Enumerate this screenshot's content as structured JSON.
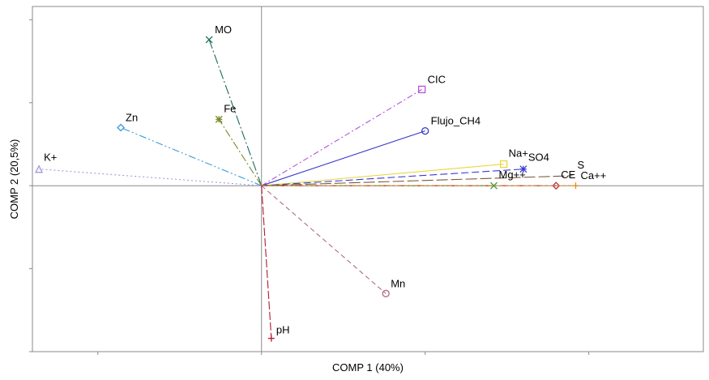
{
  "chart_data": {
    "type": "scatter",
    "subtype": "biplot-vectors",
    "title": "",
    "xlabel": "COMP 1 (40%)",
    "ylabel": "COMP 2 (20,5%)",
    "xlim": [
      -0.7,
      1.35
    ],
    "ylim": [
      -1.0,
      1.08
    ],
    "tick_labels_shown": false,
    "grid": false,
    "reference_lines": {
      "x": 0,
      "y": 0
    },
    "series": [
      {
        "name": "MO",
        "x": -0.16,
        "y": 0.88,
        "color": "#1a6b5a",
        "marker": "x",
        "dash": "12 3 2 3"
      },
      {
        "name": "CIC",
        "x": 0.49,
        "y": 0.58,
        "color": "#b455d8",
        "marker": "square",
        "dash": "7 3 2 3"
      },
      {
        "name": "Zn",
        "x": -0.43,
        "y": 0.35,
        "color": "#3a9ad9",
        "marker": "diamond",
        "dash": "9 3 2 3 2 3"
      },
      {
        "name": "Fe",
        "x": -0.13,
        "y": 0.4,
        "color": "#7a8a2a",
        "marker": "asterisk",
        "dash": "10 3 2 3"
      },
      {
        "name": "Flujo_CH4",
        "x": 0.5,
        "y": 0.33,
        "color": "#3535c8",
        "marker": "circle",
        "dash": ""
      },
      {
        "name": "K+",
        "x": -0.68,
        "y": 0.1,
        "color": "#a898d8",
        "marker": "triangle",
        "dash": "2 3"
      },
      {
        "name": "Na+",
        "x": 0.74,
        "y": 0.13,
        "color": "#e8d840",
        "marker": "square",
        "dash": ""
      },
      {
        "name": "SO4",
        "x": 0.8,
        "y": 0.1,
        "color": "#3a3ad8",
        "marker": "asterisk",
        "dash": "9 4"
      },
      {
        "name": "S",
        "x": 0.95,
        "y": 0.06,
        "color": "#7a5a3a",
        "marker": "none",
        "dash": "14 4"
      },
      {
        "name": "Mg++",
        "x": 0.71,
        "y": 0.0,
        "color": "#3a9a3a",
        "marker": "x",
        "dash": "3 3"
      },
      {
        "name": "CE",
        "x": 0.9,
        "y": 0.0,
        "color": "#b43040",
        "marker": "diamond",
        "dash": "10 4 3 4"
      },
      {
        "name": "Ca++",
        "x": 0.96,
        "y": 0.0,
        "color": "#e88a20",
        "marker": "plus",
        "dash": "4 3"
      },
      {
        "name": "Mn",
        "x": 0.38,
        "y": -0.65,
        "color": "#b46a7a",
        "marker": "circle",
        "dash": "6 4"
      },
      {
        "name": "pH",
        "x": 0.03,
        "y": -0.92,
        "color": "#b41a2a",
        "marker": "plus",
        "dash": "10 3"
      }
    ],
    "label_offsets": {
      "MO": [
        7,
        -8
      ],
      "CIC": [
        7,
        -8
      ],
      "Zn": [
        6,
        -8
      ],
      "Fe": [
        6,
        -9
      ],
      "Flujo_CH4": [
        7,
        -8
      ],
      "K+": [
        6,
        -10
      ],
      "Na+": [
        6,
        -9
      ],
      "SO4": [
        6,
        -10
      ],
      "S": [
        6,
        -9
      ],
      "Mg++": [
        6,
        -9
      ],
      "CE": [
        6,
        -9
      ],
      "Ca++": [
        6,
        -8
      ],
      "Mn": [
        6,
        -8
      ],
      "pH": [
        6,
        -6
      ]
    }
  }
}
